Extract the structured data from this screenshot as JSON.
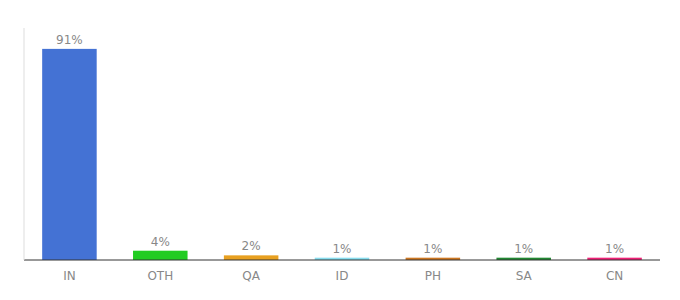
{
  "chart_data": {
    "type": "bar",
    "categories": [
      "IN",
      "OTH",
      "QA",
      "ID",
      "PH",
      "SA",
      "CN"
    ],
    "values": [
      91,
      4,
      2,
      1,
      1,
      1,
      1
    ],
    "value_labels": [
      "91%",
      "4%",
      "2%",
      "1%",
      "1%",
      "1%",
      "1%"
    ],
    "colors": [
      "#4472d4",
      "#22cc22",
      "#e8a020",
      "#88ddee",
      "#cc7722",
      "#228833",
      "#ee2277"
    ],
    "ylim": [
      0,
      100
    ],
    "data_labels": true,
    "tick_labels": "x"
  }
}
